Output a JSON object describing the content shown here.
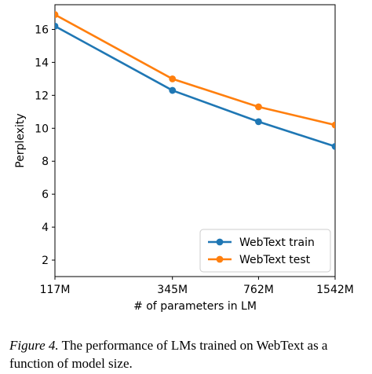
{
  "chart_data": {
    "type": "line",
    "xlabel": "# of parameters in LM",
    "ylabel": "Perplexity",
    "categories": [
      "117M",
      "345M",
      "762M",
      "1542M"
    ],
    "x": [
      117,
      345,
      762,
      1542
    ],
    "x_scale": "log",
    "xlim": [
      117,
      1542
    ],
    "ylim": [
      1,
      17.5
    ],
    "yticks": [
      2,
      4,
      6,
      8,
      10,
      12,
      14,
      16
    ],
    "grid": false,
    "legend_position": "lower-right",
    "series": [
      {
        "name": "WebText train",
        "color": "#1f77b4",
        "values": [
          16.2,
          12.3,
          10.4,
          8.9
        ]
      },
      {
        "name": "WebText test",
        "color": "#ff7f0e",
        "values": [
          16.9,
          13.0,
          11.3,
          10.2
        ]
      }
    ]
  },
  "caption": {
    "label": "Figure 4.",
    "text": "The performance of LMs trained on WebText as a function of model size."
  }
}
